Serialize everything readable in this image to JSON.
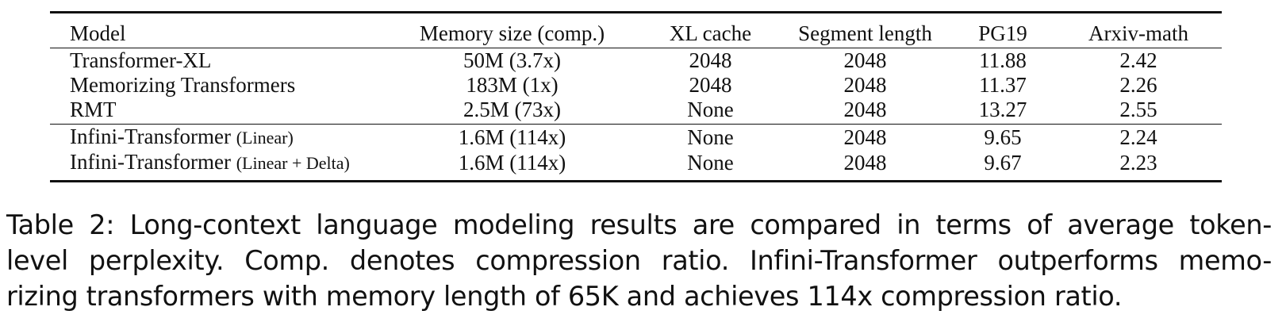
{
  "table": {
    "headers": [
      "Model",
      "Memory size (comp.)",
      "XL cache",
      "Segment length",
      "PG19",
      "Arxiv-math"
    ],
    "rows": [
      {
        "model": "Transformer-XL",
        "variant": "",
        "memory": "50M (3.7x)",
        "xl_cache": "2048",
        "segment": "2048",
        "pg19": "11.88",
        "arxiv": "2.42"
      },
      {
        "model": "Memorizing Transformers",
        "variant": "",
        "memory": "183M (1x)",
        "xl_cache": "2048",
        "segment": "2048",
        "pg19": "11.37",
        "arxiv": "2.26"
      },
      {
        "model": "RMT",
        "variant": "",
        "memory": "2.5M (73x)",
        "xl_cache": "None",
        "segment": "2048",
        "pg19": "13.27",
        "arxiv": "2.55"
      },
      {
        "model": "Infini-Transformer",
        "variant": "(Linear)",
        "memory": "1.6M (114x)",
        "xl_cache": "None",
        "segment": "2048",
        "pg19": "9.65",
        "arxiv": "2.24"
      },
      {
        "model": "Infini-Transformer",
        "variant": "(Linear + Delta)",
        "memory": "1.6M (114x)",
        "xl_cache": "None",
        "segment": "2048",
        "pg19": "9.67",
        "arxiv": "2.23"
      }
    ],
    "best_pg19_row": 3,
    "best_arxiv_row": 4
  },
  "caption": {
    "line1": "Table 2: Long-context language modeling results are compared in terms of average token-",
    "line2": "level perplexity. Comp. denotes compression ratio. Infini-Transformer outperforms memo-",
    "line3": "rizing transformers with memory length of 65K and achieves 114x compression ratio."
  }
}
